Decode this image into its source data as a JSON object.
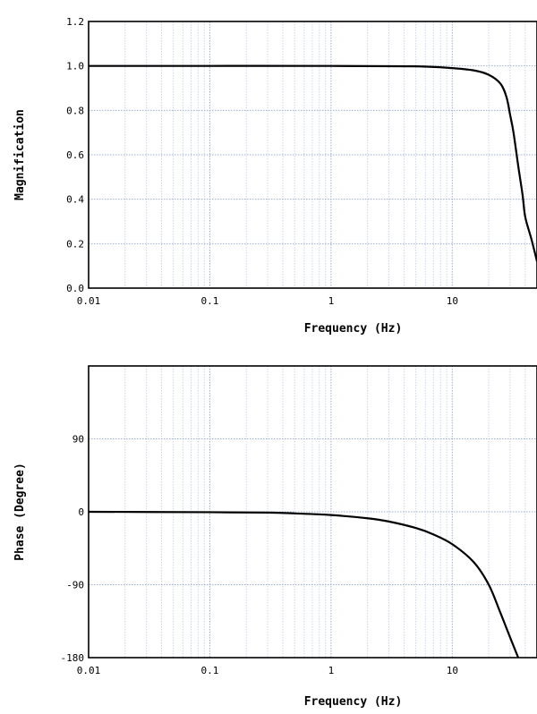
{
  "chart_data": [
    {
      "type": "line",
      "xlabel": "Frequency (Hz)",
      "ylabel": "Magnification",
      "xscale": "log",
      "xlim": [
        0.01,
        50
      ],
      "ylim": [
        0,
        1.2
      ],
      "grid": true,
      "x_ticks": [
        0.01,
        0.1,
        1,
        10
      ],
      "x_tick_labels": [
        "0.01",
        "0.1",
        "1",
        "10"
      ],
      "y_ticks": [
        0,
        0.2,
        0.4,
        0.6,
        0.8,
        1.0,
        1.2
      ],
      "y_tick_labels": [
        "0.0",
        "0.2",
        "0.4",
        "0.6",
        "0.8",
        "1.0",
        "1.2"
      ],
      "series": [
        {
          "x": [
            0.01,
            0.1,
            1,
            5,
            10,
            15,
            20,
            25,
            28,
            30,
            32,
            35,
            38,
            40,
            45,
            50
          ],
          "y": [
            1.0,
            1.0,
            1.0,
            0.998,
            0.99,
            0.98,
            0.96,
            0.92,
            0.86,
            0.78,
            0.7,
            0.55,
            0.42,
            0.32,
            0.22,
            0.12
          ]
        }
      ]
    },
    {
      "type": "line",
      "xlabel": "Frequency (Hz)",
      "ylabel": "Phase (Degree)",
      "xscale": "log",
      "xlim": [
        0.01,
        50
      ],
      "ylim": [
        -180,
        180
      ],
      "grid": true,
      "x_ticks": [
        0.01,
        0.1,
        1,
        10
      ],
      "x_tick_labels": [
        "0.01",
        "0.1",
        "1",
        "10"
      ],
      "y_ticks": [
        -180,
        -90,
        0,
        90
      ],
      "y_tick_labels": [
        "-180",
        "-90",
        "0",
        "90"
      ],
      "series": [
        {
          "x": [
            0.01,
            0.1,
            0.3,
            0.5,
            1,
            2,
            3,
            5,
            7,
            10,
            15,
            20,
            25,
            30,
            35
          ],
          "y": [
            0,
            -0.5,
            -1,
            -2,
            -4,
            -8,
            -12,
            -20,
            -28,
            -40,
            -62,
            -90,
            -125,
            -155,
            -180
          ]
        }
      ]
    }
  ]
}
